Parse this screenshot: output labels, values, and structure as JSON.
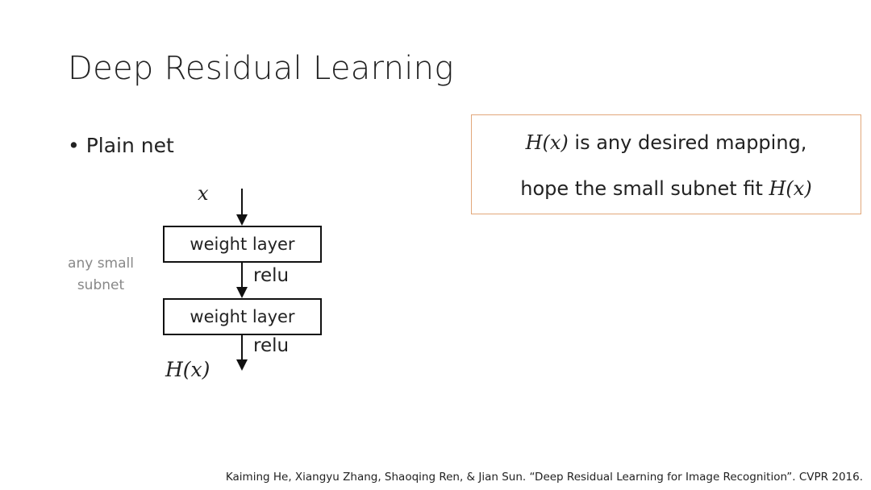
{
  "slide": {
    "title": "Deep Residual Learning",
    "bullet": "Plain net",
    "side_label_line1": "any small",
    "side_label_line2": "subnet",
    "diagram": {
      "input": "x",
      "layer1": "weight layer",
      "activation1": "relu",
      "layer2": "weight layer",
      "activation2": "relu",
      "output": "H(x)"
    },
    "note": {
      "line1_math": "H(x)",
      "line1_text": " is any desired mapping,",
      "line2_text": "hope the small subnet fit ",
      "line2_math": "H(x)",
      "border_color": "#e2a77a"
    },
    "citation": "Kaiming He, Xiangyu Zhang, Shaoqing Ren, & Jian Sun. “Deep Residual Learning for Image Recognition”. CVPR 2016."
  }
}
